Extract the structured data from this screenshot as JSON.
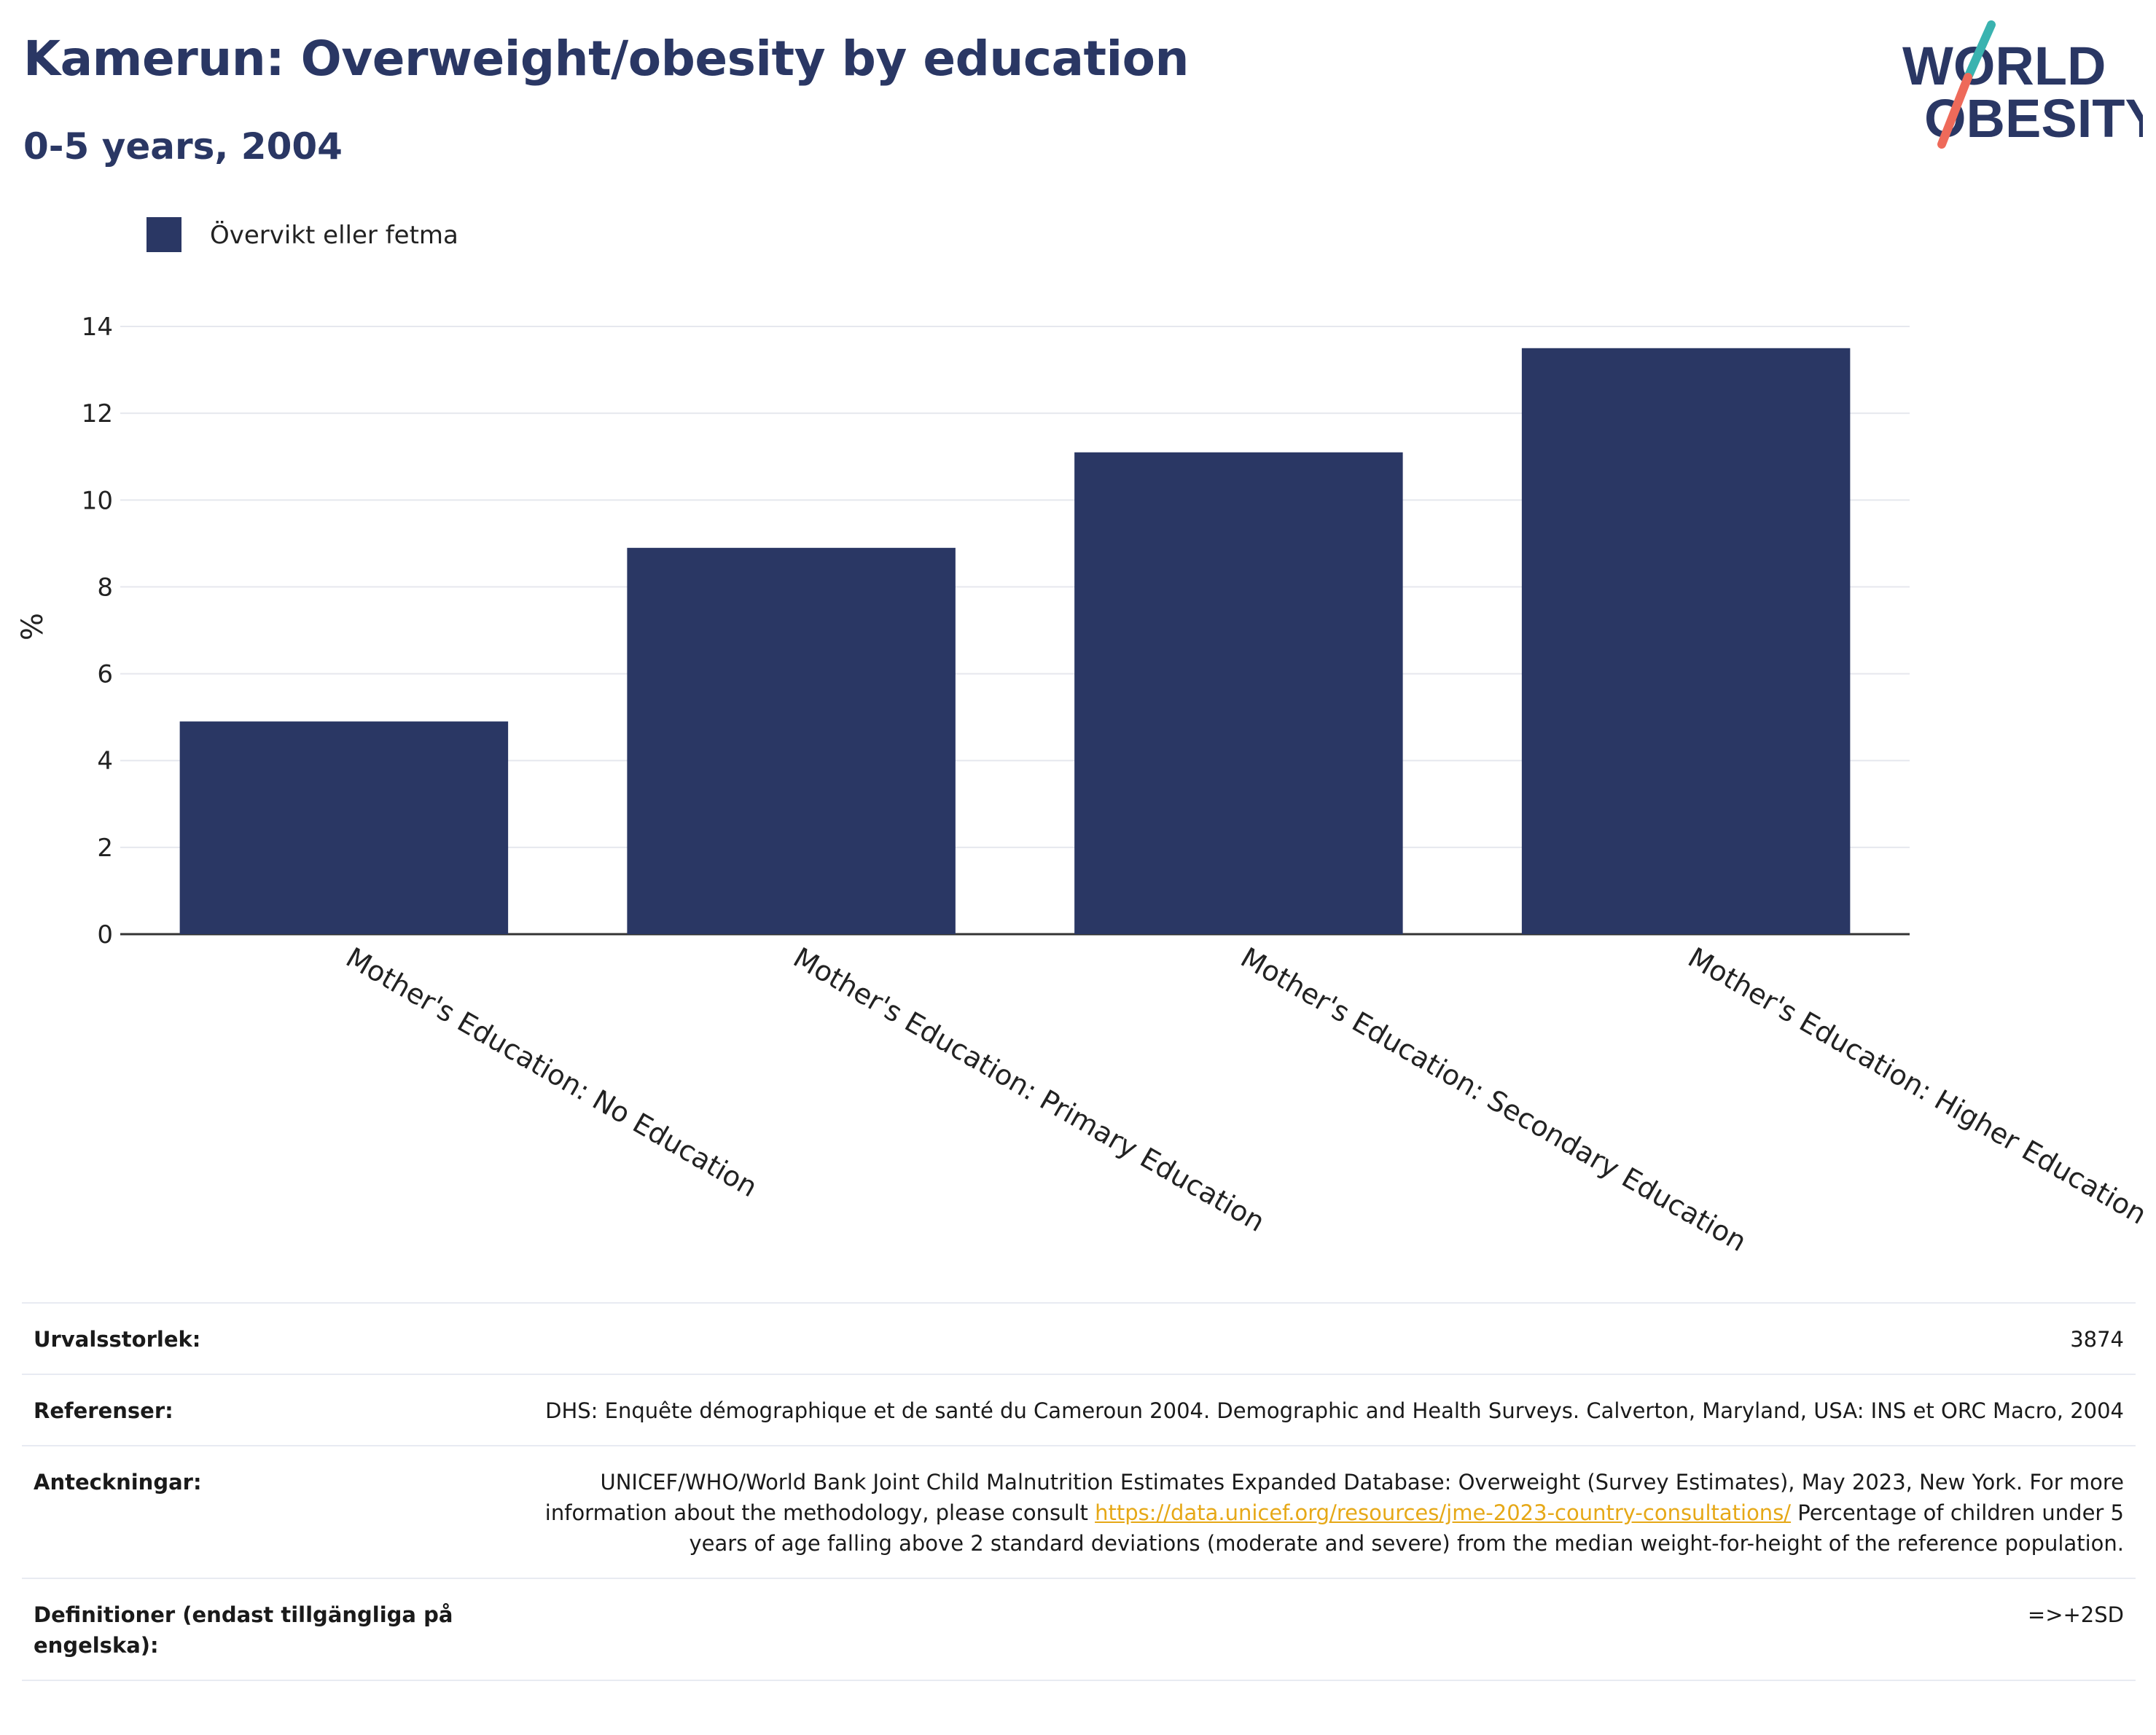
{
  "title": "Kamerun: Overweight/obesity by education",
  "subtitle": "0-5 years, 2004",
  "logo": {
    "line1": "WORLD",
    "line2": "OBESITY"
  },
  "colors": {
    "bar": "#2a3764",
    "title": "#2a3764",
    "link": "#e6a817",
    "logo_teal": "#3ab3b0",
    "logo_coral": "#ee6a5a"
  },
  "chart_data": {
    "type": "bar",
    "categories": [
      "Mother's Education: No Education",
      "Mother's Education: Primary Education",
      "Mother's Education: Secondary Education",
      "Mother's Education: Higher Education"
    ],
    "series": [
      {
        "name": "Övervikt eller fetma",
        "values": [
          4.9,
          8.9,
          11.1,
          13.5
        ]
      }
    ],
    "ylabel": "%",
    "ylim": [
      0,
      14
    ],
    "yticks": [
      0,
      2,
      4,
      6,
      8,
      10,
      12,
      14
    ],
    "grid": true,
    "legend": "top-left"
  },
  "meta": [
    {
      "label": "Urvalsstorlek:",
      "value": "3874"
    },
    {
      "label": "Referenser:",
      "value": "DHS: Enquête démographique et de santé du Cameroun 2004. Demographic and Health Surveys. Calverton, Maryland, USA: INS et ORC Macro, 2004"
    },
    {
      "label": "Anteckningar:",
      "value_pre": "UNICEF/WHO/World Bank Joint Child Malnutrition Estimates Expanded Database: Overweight (Survey Estimates), May 2023, New York. For more information about the methodology, please consult ",
      "link": "https://data.unicef.org/resources/jme-2023-country-consultations/",
      "value_post": " Percentage of children under 5 years of age falling above 2 standard deviations (moderate and severe) from the median weight-for-height of the reference population."
    },
    {
      "label": "Definitioner (endast tillgängliga på engelska):",
      "value": "=>+2SD"
    }
  ]
}
